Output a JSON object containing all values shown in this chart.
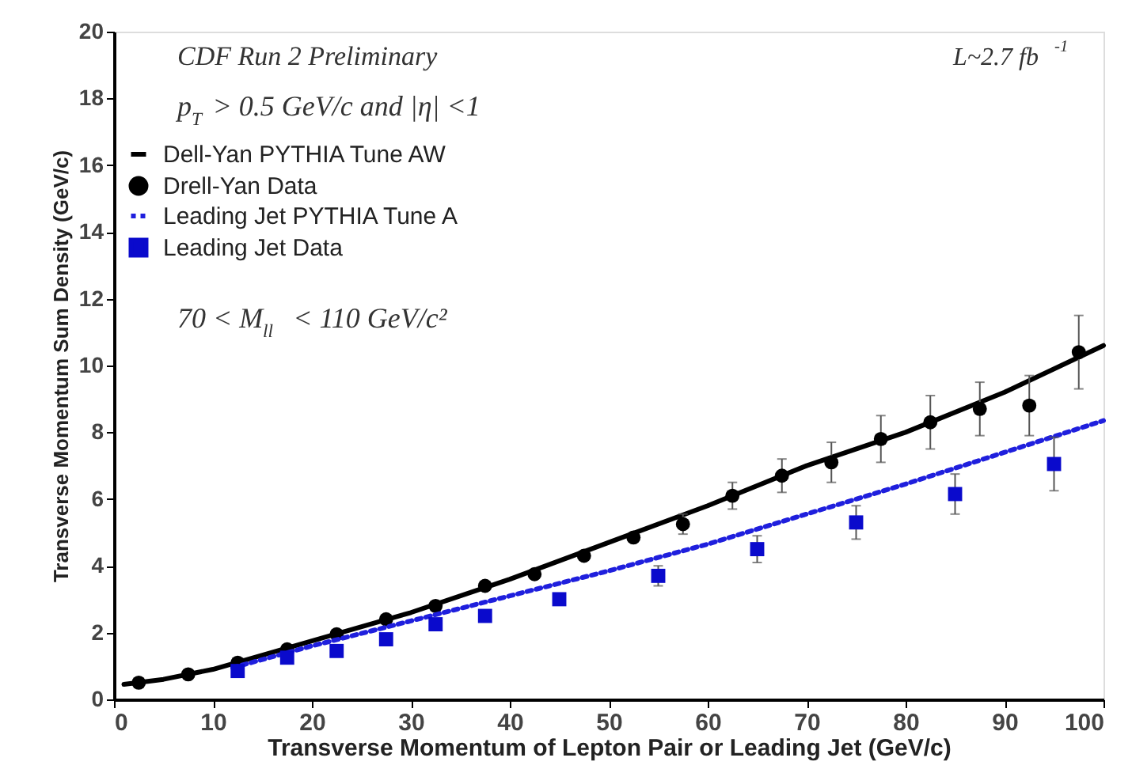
{
  "chart_data": {
    "type": "scatter",
    "xlabel": "Transverse Momentum of Lepton Pair or Leading Jet (GeV/c)",
    "ylabel": "Transverse Momentum Sum Density (GeV/c)",
    "xlim": [
      0,
      100
    ],
    "xticks": [
      0,
      10,
      20,
      30,
      40,
      50,
      60,
      70,
      80,
      90,
      100
    ],
    "ylim": [
      0,
      20
    ],
    "yticks": [
      0,
      2,
      4,
      6,
      8,
      10,
      12,
      14,
      16,
      18,
      20
    ],
    "grid": false,
    "legend": "top left",
    "annotations": [
      {
        "text": "CDF Run 2 Preliminary"
      },
      {
        "text": "L~2.7 fb$^{-1}$"
      },
      {
        "text": "p$_{T}$ > 0.5  GeV/c and |η| <1"
      },
      {
        "text": "70 < M$_{ll}$ < 110 GeV/c²"
      }
    ],
    "series": [
      {
        "name": "Dell-Yan PYTHIA Tune AW",
        "type": "line",
        "line_style": "solid",
        "color": "#000000",
        "x": [
          1,
          5,
          10,
          20,
          30,
          40,
          50,
          60,
          70,
          80,
          90,
          100
        ],
        "values": [
          0.45,
          0.6,
          0.9,
          1.75,
          2.6,
          3.6,
          4.7,
          5.8,
          7.0,
          8.0,
          9.2,
          10.6
        ]
      },
      {
        "name": "Drell-Yan Data",
        "marker": "circle",
        "color": "#000000",
        "x": [
          2.5,
          7.5,
          12.5,
          17.5,
          22.5,
          27.5,
          32.5,
          37.5,
          42.5,
          47.5,
          52.5,
          57.5,
          62.5,
          67.5,
          72.5,
          77.5,
          82.5,
          87.5,
          92.5,
          97.5
        ],
        "values": [
          0.5,
          0.75,
          1.1,
          1.5,
          1.95,
          2.4,
          2.8,
          3.4,
          3.75,
          4.3,
          4.85,
          5.25,
          6.1,
          6.7,
          7.1,
          7.8,
          8.3,
          8.7,
          8.8,
          10.4
        ],
        "errors": [
          null,
          null,
          null,
          null,
          null,
          null,
          null,
          null,
          null,
          null,
          null,
          0.3,
          0.4,
          0.5,
          0.6,
          0.7,
          0.8,
          0.8,
          0.9,
          1.1
        ]
      },
      {
        "name": "Leading Jet PYTHIA Tune A",
        "type": "line",
        "line_style": "dotted",
        "color": "#1f1fdd",
        "x": [
          12,
          20,
          30,
          40,
          50,
          60,
          70,
          80,
          90,
          100
        ],
        "values": [
          0.95,
          1.6,
          2.35,
          3.1,
          3.85,
          4.65,
          5.55,
          6.45,
          7.4,
          8.35
        ]
      },
      {
        "name": "Leading Jet Data",
        "marker": "square",
        "color": "#0a0acc",
        "x": [
          12.5,
          17.5,
          22.5,
          27.5,
          32.5,
          37.5,
          45,
          55,
          65,
          75,
          85,
          95
        ],
        "values": [
          0.85,
          1.25,
          1.45,
          1.8,
          2.25,
          2.5,
          3.0,
          3.7,
          4.5,
          5.3,
          6.15,
          7.05
        ],
        "errors": [
          null,
          null,
          null,
          null,
          null,
          null,
          null,
          0.3,
          0.4,
          0.5,
          0.6,
          0.8
        ]
      }
    ]
  }
}
